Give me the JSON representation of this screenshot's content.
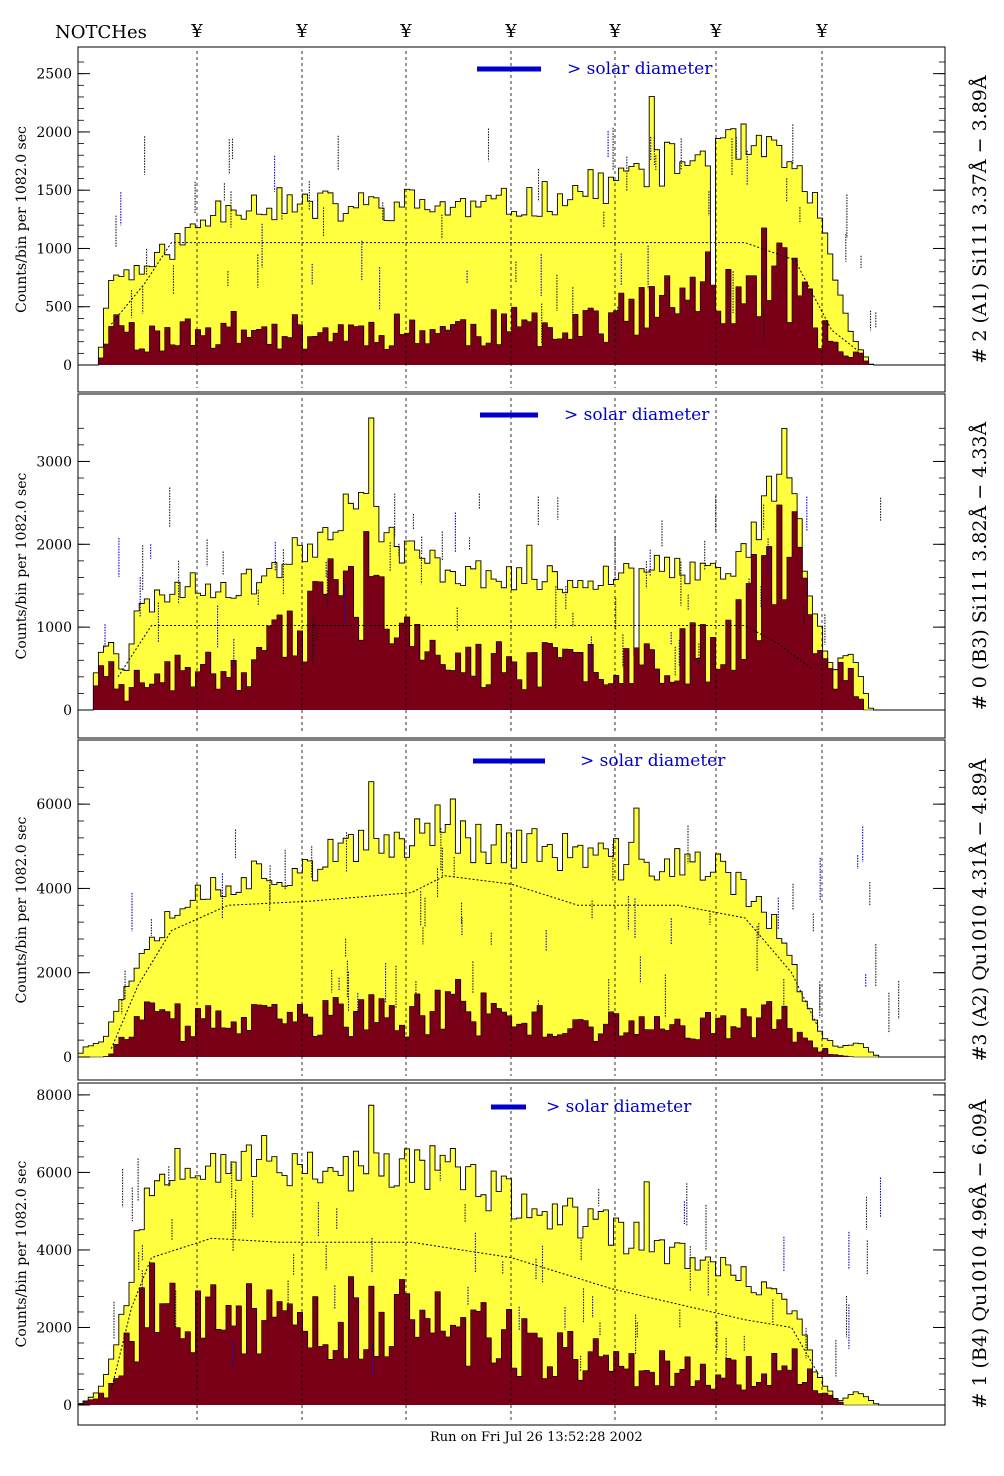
{
  "header": {
    "notches_label": "NOTCHes",
    "notch_symbol": "¥"
  },
  "footer": {
    "run_label": "Run on Fri Jul 26 13:52:28 2002"
  },
  "colors": {
    "fill_total": "#ffff3f",
    "fill_signal": "#7a0018",
    "outline": "#000000",
    "annotation": "#0000cc",
    "annotation_dark": "#5a0a5a"
  },
  "chart_data": [
    {
      "type": "area",
      "title": "",
      "ylabel": "Counts/bin per   1082.0 sec",
      "right_label": "# 2 (A1) Si111  3.37Å − 3.89Å",
      "legend_text": "> solar diameter",
      "ylim": [
        0,
        2600
      ],
      "yticks": [
        0,
        500,
        1000,
        1500,
        2000,
        2500
      ],
      "bins": 170,
      "total_profile": [
        [
          0,
          0
        ],
        [
          6,
          0
        ],
        [
          10,
          760
        ],
        [
          20,
          820
        ],
        [
          30,
          1050
        ],
        [
          45,
          1400
        ],
        [
          70,
          1360
        ],
        [
          80,
          1350
        ],
        [
          100,
          1380
        ],
        [
          120,
          1340
        ],
        [
          140,
          1420
        ],
        [
          160,
          1560
        ],
        [
          170,
          1690
        ],
        [
          180,
          1740
        ],
        [
          200,
          1870
        ],
        [
          214,
          1700
        ],
        [
          220,
          1500
        ],
        [
          228,
          600
        ],
        [
          234,
          150
        ],
        [
          238,
          0
        ],
        [
          260,
          0
        ]
      ],
      "signal_profile": [
        [
          0,
          0
        ],
        [
          6,
          0
        ],
        [
          10,
          400
        ],
        [
          20,
          220
        ],
        [
          30,
          260
        ],
        [
          45,
          300
        ],
        [
          70,
          280
        ],
        [
          90,
          300
        ],
        [
          110,
          300
        ],
        [
          130,
          320
        ],
        [
          150,
          380
        ],
        [
          170,
          450
        ],
        [
          185,
          600
        ],
        [
          200,
          720
        ],
        [
          210,
          800
        ],
        [
          216,
          640
        ],
        [
          222,
          300
        ],
        [
          228,
          150
        ],
        [
          234,
          90
        ],
        [
          238,
          0
        ],
        [
          260,
          0
        ]
      ],
      "envelope": [
        [
          10,
          350
        ],
        [
          20,
          700
        ],
        [
          28,
          1050
        ],
        [
          200,
          1050
        ],
        [
          215,
          900
        ],
        [
          226,
          300
        ],
        [
          234,
          120
        ]
      ],
      "spikes": [
        [
          112,
          1.3
        ],
        [
          124,
          1.35
        ],
        [
          162,
          1.4
        ],
        [
          186,
          1.45
        ]
      ],
      "dip_bins": [
        124
      ],
      "seed": 11
    },
    {
      "type": "area",
      "title": "",
      "ylabel": "Counts/bin per   1082.0 sec",
      "right_label": "# 0 (B3) Si111  3.82Å − 4.33Å",
      "legend_text": "> solar diameter",
      "ylim": [
        0,
        3500
      ],
      "yticks": [
        0,
        1000,
        2000,
        3000
      ],
      "bins": 170,
      "total_profile": [
        [
          0,
          0
        ],
        [
          4,
          0
        ],
        [
          6,
          700
        ],
        [
          10,
          900
        ],
        [
          14,
          400
        ],
        [
          18,
          1200
        ],
        [
          30,
          1500
        ],
        [
          50,
          1500
        ],
        [
          70,
          2000
        ],
        [
          85,
          2700
        ],
        [
          95,
          2000
        ],
        [
          110,
          1700
        ],
        [
          130,
          1600
        ],
        [
          150,
          1550
        ],
        [
          170,
          1800
        ],
        [
          180,
          1650
        ],
        [
          195,
          1600
        ],
        [
          205,
          2300
        ],
        [
          212,
          3250
        ],
        [
          220,
          1400
        ],
        [
          226,
          500
        ],
        [
          232,
          700
        ],
        [
          238,
          0
        ],
        [
          260,
          0
        ]
      ],
      "signal_profile": [
        [
          0,
          0
        ],
        [
          4,
          0
        ],
        [
          6,
          350
        ],
        [
          10,
          450
        ],
        [
          14,
          200
        ],
        [
          18,
          350
        ],
        [
          30,
          450
        ],
        [
          50,
          500
        ],
        [
          70,
          1000
        ],
        [
          85,
          1700
        ],
        [
          95,
          800
        ],
        [
          110,
          600
        ],
        [
          130,
          520
        ],
        [
          150,
          560
        ],
        [
          170,
          650
        ],
        [
          190,
          700
        ],
        [
          205,
          1500
        ],
        [
          212,
          2300
        ],
        [
          218,
          1200
        ],
        [
          224,
          400
        ],
        [
          230,
          500
        ],
        [
          236,
          0
        ],
        [
          260,
          0
        ]
      ],
      "envelope": [
        [
          12,
          400
        ],
        [
          22,
          1020
        ],
        [
          200,
          1020
        ],
        [
          210,
          800
        ],
        [
          220,
          500
        ]
      ],
      "spikes": [
        [
          57,
          1.55
        ],
        [
          88,
          1.2
        ],
        [
          109,
          1.6
        ],
        [
          172,
          2.3
        ]
      ],
      "dip_bins": [
        109
      ],
      "seed": 23
    },
    {
      "type": "area",
      "title": "",
      "ylabel": "Counts/bin per   1082.0 sec",
      "right_label": "#3 (A2) Qu1010  4.31Å − 4.89Å",
      "legend_text": "> solar diameter",
      "ylim": [
        0,
        7000
      ],
      "yticks": [
        0,
        2000,
        4000,
        6000
      ],
      "bins": 170,
      "total_profile": [
        [
          0,
          0
        ],
        [
          2,
          250
        ],
        [
          8,
          400
        ],
        [
          14,
          1600
        ],
        [
          20,
          2700
        ],
        [
          30,
          3600
        ],
        [
          45,
          4200
        ],
        [
          70,
          4600
        ],
        [
          90,
          5000
        ],
        [
          105,
          5400
        ],
        [
          110,
          6000
        ],
        [
          115,
          5200
        ],
        [
          140,
          4900
        ],
        [
          160,
          4700
        ],
        [
          180,
          4600
        ],
        [
          195,
          4300
        ],
        [
          205,
          3700
        ],
        [
          215,
          2000
        ],
        [
          222,
          600
        ],
        [
          228,
          200
        ],
        [
          234,
          350
        ],
        [
          240,
          0
        ],
        [
          260,
          0
        ]
      ],
      "signal_profile": [
        [
          0,
          0
        ],
        [
          8,
          0
        ],
        [
          14,
          400
        ],
        [
          20,
          850
        ],
        [
          40,
          800
        ],
        [
          60,
          850
        ],
        [
          80,
          1000
        ],
        [
          100,
          900
        ],
        [
          110,
          1400
        ],
        [
          120,
          1000
        ],
        [
          140,
          800
        ],
        [
          160,
          700
        ],
        [
          180,
          700
        ],
        [
          200,
          1000
        ],
        [
          210,
          900
        ],
        [
          218,
          400
        ],
        [
          224,
          150
        ],
        [
          232,
          0
        ],
        [
          260,
          0
        ]
      ],
      "envelope": [
        [
          10,
          200
        ],
        [
          18,
          1700
        ],
        [
          28,
          3000
        ],
        [
          45,
          3600
        ],
        [
          70,
          3700
        ],
        [
          100,
          3900
        ],
        [
          110,
          4300
        ],
        [
          130,
          4100
        ],
        [
          150,
          3600
        ],
        [
          180,
          3600
        ],
        [
          200,
          3300
        ],
        [
          214,
          2000
        ],
        [
          222,
          700
        ]
      ],
      "spikes": [
        [
          57,
          1.2
        ],
        [
          109,
          1.15
        ],
        [
          172,
          3.0
        ]
      ],
      "dip_bins": [
        172
      ],
      "seed": 37
    },
    {
      "type": "area",
      "title": "",
      "ylabel": "Counts/bin per   1082.0 sec",
      "right_label": "# 1 (B4) Qu1010 4.96Å − 6.09Å",
      "legend_text": "> solar diameter",
      "ylim": [
        0,
        8100
      ],
      "yticks": [
        0,
        2000,
        4000,
        6000,
        8000
      ],
      "bins": 170,
      "total_profile": [
        [
          0,
          0
        ],
        [
          4,
          200
        ],
        [
          8,
          600
        ],
        [
          14,
          2500
        ],
        [
          20,
          5200
        ],
        [
          28,
          6500
        ],
        [
          50,
          6300
        ],
        [
          70,
          6200
        ],
        [
          90,
          6000
        ],
        [
          110,
          6300
        ],
        [
          120,
          5600
        ],
        [
          140,
          5000
        ],
        [
          160,
          4500
        ],
        [
          180,
          3900
        ],
        [
          200,
          3200
        ],
        [
          214,
          2600
        ],
        [
          222,
          700
        ],
        [
          228,
          100
        ],
        [
          234,
          350
        ],
        [
          240,
          0
        ],
        [
          260,
          0
        ]
      ],
      "signal_profile": [
        [
          0,
          0
        ],
        [
          4,
          200
        ],
        [
          8,
          300
        ],
        [
          14,
          1500
        ],
        [
          20,
          2700
        ],
        [
          40,
          2200
        ],
        [
          60,
          2000
        ],
        [
          80,
          2200
        ],
        [
          100,
          2200
        ],
        [
          120,
          1800
        ],
        [
          140,
          1400
        ],
        [
          160,
          1100
        ],
        [
          180,
          900
        ],
        [
          200,
          800
        ],
        [
          214,
          1200
        ],
        [
          222,
          400
        ],
        [
          230,
          0
        ],
        [
          260,
          0
        ]
      ],
      "envelope": [
        [
          10,
          400
        ],
        [
          16,
          2500
        ],
        [
          22,
          3800
        ],
        [
          40,
          4300
        ],
        [
          60,
          4200
        ],
        [
          100,
          4200
        ],
        [
          130,
          3800
        ],
        [
          160,
          3000
        ],
        [
          180,
          2600
        ],
        [
          200,
          2200
        ],
        [
          214,
          2000
        ],
        [
          222,
          800
        ]
      ],
      "spikes": [
        [
          57,
          1.2
        ],
        [
          111,
          1.25
        ],
        [
          172,
          0.45
        ]
      ],
      "dip_bins": [
        172
      ],
      "seed": 53
    }
  ]
}
